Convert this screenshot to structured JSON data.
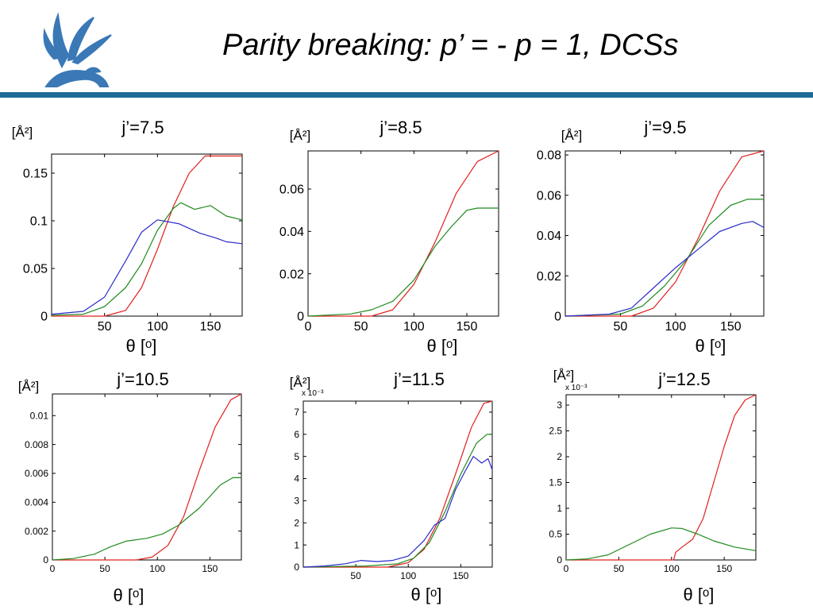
{
  "header": {
    "title": "Parity breaking: p’ = - p = 1, DCSs"
  },
  "logo": {
    "icon": "griffin-logo-icon",
    "color": "#3b78b6"
  },
  "colors": {
    "rule": "#1e6b98",
    "red": "#e0201e",
    "green": "#1f8a1f",
    "blue": "#2a2acc"
  },
  "chart_data": [
    {
      "type": "line",
      "title": "j’=7.5",
      "ylabel": "[Å²]",
      "xlabel": "θ [ᵒ]",
      "xlim": [
        0,
        180
      ],
      "ylim": [
        0,
        0.17
      ],
      "xticks": [
        50,
        100,
        150
      ],
      "yticks": [
        0,
        0.05,
        0.1,
        0.15
      ],
      "yticklabels": [
        "0",
        "0.05",
        "0.1",
        "0.15"
      ],
      "yexp": "",
      "series": [
        {
          "color": "red",
          "points": [
            [
              0,
              0
            ],
            [
              50,
              0
            ],
            [
              70,
              0.006
            ],
            [
              85,
              0.03
            ],
            [
              100,
              0.07
            ],
            [
              115,
              0.115
            ],
            [
              130,
              0.15
            ],
            [
              145,
              0.168
            ],
            [
              180,
              0.168
            ]
          ]
        },
        {
          "color": "green",
          "points": [
            [
              0,
              0.001
            ],
            [
              30,
              0.002
            ],
            [
              50,
              0.01
            ],
            [
              70,
              0.03
            ],
            [
              85,
              0.055
            ],
            [
              100,
              0.09
            ],
            [
              115,
              0.113
            ],
            [
              122,
              0.119
            ],
            [
              135,
              0.112
            ],
            [
              150,
              0.116
            ],
            [
              165,
              0.105
            ],
            [
              180,
              0.101
            ]
          ]
        },
        {
          "color": "blue",
          "points": [
            [
              0,
              0.002
            ],
            [
              30,
              0.005
            ],
            [
              50,
              0.02
            ],
            [
              70,
              0.058
            ],
            [
              85,
              0.088
            ],
            [
              100,
              0.101
            ],
            [
              120,
              0.097
            ],
            [
              140,
              0.087
            ],
            [
              155,
              0.082
            ],
            [
              165,
              0.078
            ],
            [
              180,
              0.076
            ]
          ]
        }
      ]
    },
    {
      "type": "line",
      "title": "j’=8.5",
      "ylabel": "[Å²]",
      "xlabel": "θ [ᵒ]",
      "xlim": [
        0,
        180
      ],
      "ylim": [
        0,
        0.078
      ],
      "xticks": [
        0,
        50,
        100,
        150
      ],
      "yticks": [
        0,
        0.02,
        0.04,
        0.06
      ],
      "yticklabels": [
        "0",
        "0.02",
        "0.04",
        "0.06"
      ],
      "yexp": "",
      "series": [
        {
          "color": "red",
          "points": [
            [
              0,
              0
            ],
            [
              60,
              0
            ],
            [
              80,
              0.003
            ],
            [
              100,
              0.015
            ],
            [
              120,
              0.035
            ],
            [
              140,
              0.058
            ],
            [
              160,
              0.073
            ],
            [
              180,
              0.078
            ]
          ]
        },
        {
          "color": "green",
          "points": [
            [
              0,
              0
            ],
            [
              40,
              0.001
            ],
            [
              60,
              0.003
            ],
            [
              80,
              0.007
            ],
            [
              100,
              0.017
            ],
            [
              120,
              0.033
            ],
            [
              135,
              0.042
            ],
            [
              150,
              0.05
            ],
            [
              160,
              0.051
            ],
            [
              180,
              0.051
            ]
          ]
        }
      ]
    },
    {
      "type": "line",
      "title": "j’=9.5",
      "ylabel": "[Å²]",
      "xlabel": "θ [ᵒ]",
      "xlim": [
        0,
        180
      ],
      "ylim": [
        0,
        0.082
      ],
      "xticks": [
        50,
        100,
        150
      ],
      "yticks": [
        0,
        0.02,
        0.04,
        0.06,
        0.08
      ],
      "yticklabels": [
        "0",
        "0.02",
        "0.04",
        "0.06",
        "0.08"
      ],
      "yexp": "",
      "series": [
        {
          "color": "red",
          "points": [
            [
              0,
              0
            ],
            [
              60,
              0
            ],
            [
              80,
              0.004
            ],
            [
              100,
              0.017
            ],
            [
              120,
              0.038
            ],
            [
              140,
              0.062
            ],
            [
              160,
              0.079
            ],
            [
              180,
              0.082
            ]
          ]
        },
        {
          "color": "green",
          "points": [
            [
              0,
              0
            ],
            [
              50,
              0.001
            ],
            [
              70,
              0.005
            ],
            [
              90,
              0.015
            ],
            [
              110,
              0.028
            ],
            [
              130,
              0.045
            ],
            [
              150,
              0.055
            ],
            [
              165,
              0.058
            ],
            [
              180,
              0.058
            ]
          ]
        },
        {
          "color": "blue",
          "points": [
            [
              0,
              0
            ],
            [
              40,
              0.001
            ],
            [
              60,
              0.004
            ],
            [
              80,
              0.014
            ],
            [
              100,
              0.024
            ],
            [
              120,
              0.033
            ],
            [
              140,
              0.042
            ],
            [
              160,
              0.046
            ],
            [
              170,
              0.047
            ],
            [
              180,
              0.044
            ]
          ]
        }
      ]
    },
    {
      "type": "line",
      "title": "j’=10.5",
      "ylabel": "[Å²]",
      "xlabel": "θ [ᵒ]",
      "xlim": [
        0,
        180
      ],
      "ylim": [
        0,
        0.0115
      ],
      "xticks": [
        0,
        50,
        100,
        150
      ],
      "yticks": [
        0,
        0.002,
        0.004,
        0.006,
        0.008,
        0.01
      ],
      "yticklabels": [
        "0",
        "0.002",
        "0.004",
        "0.006",
        "0.008",
        "0.01"
      ],
      "yexp": "",
      "series": [
        {
          "color": "red",
          "points": [
            [
              0,
              0
            ],
            [
              80,
              0
            ],
            [
              95,
              0.0002
            ],
            [
              110,
              0.001
            ],
            [
              125,
              0.003
            ],
            [
              140,
              0.0062
            ],
            [
              155,
              0.0092
            ],
            [
              170,
              0.0111
            ],
            [
              180,
              0.0115
            ]
          ]
        },
        {
          "color": "green",
          "points": [
            [
              0,
              0
            ],
            [
              20,
              0.0001
            ],
            [
              40,
              0.0004
            ],
            [
              55,
              0.0009
            ],
            [
              70,
              0.0013
            ],
            [
              90,
              0.0015
            ],
            [
              105,
              0.0018
            ],
            [
              120,
              0.0024
            ],
            [
              140,
              0.0036
            ],
            [
              160,
              0.0052
            ],
            [
              172,
              0.0057
            ],
            [
              180,
              0.0057
            ]
          ]
        }
      ]
    },
    {
      "type": "line",
      "title": "j’=11.5",
      "ylabel": "[Å²]",
      "xlabel": "θ [ᵒ]",
      "xlim": [
        0,
        180
      ],
      "ylim": [
        0,
        7.5
      ],
      "xticks": [
        50,
        100,
        150
      ],
      "yticks": [
        0,
        1,
        2,
        3,
        4,
        5,
        6,
        7
      ],
      "yticklabels": [
        "0",
        "1",
        "2",
        "3",
        "4",
        "5",
        "6",
        "7"
      ],
      "yexp": "x 10⁻³",
      "series": [
        {
          "color": "red",
          "points": [
            [
              0,
              0
            ],
            [
              80,
              0
            ],
            [
              100,
              0.2
            ],
            [
              115,
              0.8
            ],
            [
              130,
              2.2
            ],
            [
              145,
              4.2
            ],
            [
              160,
              6.3
            ],
            [
              172,
              7.4
            ],
            [
              180,
              7.5
            ]
          ]
        },
        {
          "color": "green",
          "points": [
            [
              0,
              0
            ],
            [
              60,
              0.05
            ],
            [
              90,
              0.15
            ],
            [
              105,
              0.4
            ],
            [
              120,
              1.1
            ],
            [
              135,
              2.5
            ],
            [
              150,
              4.2
            ],
            [
              165,
              5.6
            ],
            [
              175,
              6.0
            ],
            [
              180,
              6.0
            ]
          ]
        },
        {
          "color": "blue",
          "points": [
            [
              0,
              0
            ],
            [
              20,
              0.05
            ],
            [
              40,
              0.15
            ],
            [
              55,
              0.3
            ],
            [
              70,
              0.25
            ],
            [
              85,
              0.3
            ],
            [
              100,
              0.5
            ],
            [
              115,
              1.2
            ],
            [
              125,
              1.9
            ],
            [
              135,
              2.2
            ],
            [
              145,
              3.5
            ],
            [
              155,
              4.4
            ],
            [
              162,
              5.0
            ],
            [
              170,
              4.7
            ],
            [
              176,
              4.9
            ],
            [
              180,
              4.4
            ]
          ]
        }
      ]
    },
    {
      "type": "line",
      "title": "j’=12.5",
      "ylabel": "[Å²]",
      "xlabel": "θ [ᵒ]",
      "xlim": [
        0,
        180
      ],
      "ylim": [
        0,
        3.2
      ],
      "xticks": [
        0,
        50,
        100,
        150
      ],
      "yticks": [
        0,
        0.5,
        1,
        1.5,
        2,
        2.5,
        3
      ],
      "yticklabels": [
        "0",
        "0.5",
        "1",
        "1.5",
        "2",
        "2.5",
        "3"
      ],
      "yexp": "x 10⁻³",
      "series": [
        {
          "color": "red",
          "points": [
            [
              0,
              0
            ],
            [
              102,
              0
            ],
            [
              104,
              0.15
            ],
            [
              110,
              0.25
            ],
            [
              120,
              0.4
            ],
            [
              130,
              0.8
            ],
            [
              140,
              1.5
            ],
            [
              150,
              2.2
            ],
            [
              160,
              2.8
            ],
            [
              170,
              3.1
            ],
            [
              180,
              3.2
            ]
          ]
        },
        {
          "color": "green",
          "points": [
            [
              0,
              0
            ],
            [
              20,
              0.02
            ],
            [
              40,
              0.1
            ],
            [
              60,
              0.3
            ],
            [
              80,
              0.5
            ],
            [
              100,
              0.62
            ],
            [
              110,
              0.61
            ],
            [
              125,
              0.5
            ],
            [
              140,
              0.37
            ],
            [
              160,
              0.25
            ],
            [
              180,
              0.18
            ]
          ]
        }
      ]
    }
  ]
}
